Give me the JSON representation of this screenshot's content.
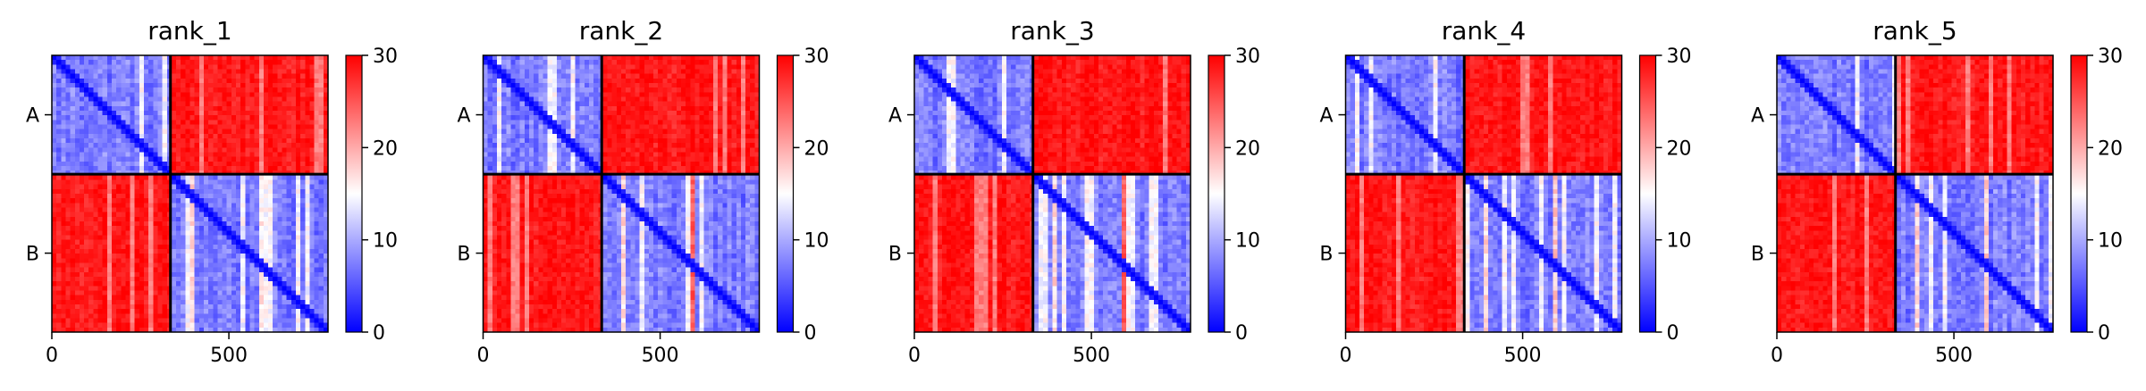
{
  "figure": {
    "colormap": {
      "low": "#0000ff",
      "mid": "#ffffff",
      "high": "#ff0000"
    },
    "line_color": "#000000"
  },
  "chart_data": [
    {
      "type": "heatmap",
      "title": "rank_1",
      "chains": [
        "A",
        "B"
      ],
      "chain_boundary": 335,
      "x_ticks": [
        0,
        500
      ],
      "xlim": [
        0,
        780
      ],
      "colorbar": {
        "vmin": 0,
        "vmax": 30,
        "ticks": [
          0,
          10,
          20,
          30
        ]
      },
      "legend": "none",
      "grid": false
    },
    {
      "type": "heatmap",
      "title": "rank_2",
      "chains": [
        "A",
        "B"
      ],
      "chain_boundary": 335,
      "x_ticks": [
        0,
        500
      ],
      "xlim": [
        0,
        780
      ],
      "colorbar": {
        "vmin": 0,
        "vmax": 30,
        "ticks": [
          0,
          10,
          20,
          30
        ]
      },
      "legend": "none",
      "grid": false
    },
    {
      "type": "heatmap",
      "title": "rank_3",
      "chains": [
        "A",
        "B"
      ],
      "chain_boundary": 335,
      "x_ticks": [
        0,
        500
      ],
      "xlim": [
        0,
        780
      ],
      "colorbar": {
        "vmin": 0,
        "vmax": 30,
        "ticks": [
          0,
          10,
          20,
          30
        ]
      },
      "legend": "none",
      "grid": false
    },
    {
      "type": "heatmap",
      "title": "rank_4",
      "chains": [
        "A",
        "B"
      ],
      "chain_boundary": 335,
      "x_ticks": [
        0,
        500
      ],
      "xlim": [
        0,
        780
      ],
      "colorbar": {
        "vmin": 0,
        "vmax": 30,
        "ticks": [
          0,
          10,
          20,
          30
        ]
      },
      "legend": "none",
      "grid": false
    },
    {
      "type": "heatmap",
      "title": "rank_5",
      "chains": [
        "A",
        "B"
      ],
      "chain_boundary": 335,
      "x_ticks": [
        0,
        500
      ],
      "xlim": [
        0,
        780
      ],
      "colorbar": {
        "vmin": 0,
        "vmax": 30,
        "ticks": [
          0,
          10,
          20,
          30
        ]
      },
      "legend": "none",
      "grid": false
    }
  ]
}
